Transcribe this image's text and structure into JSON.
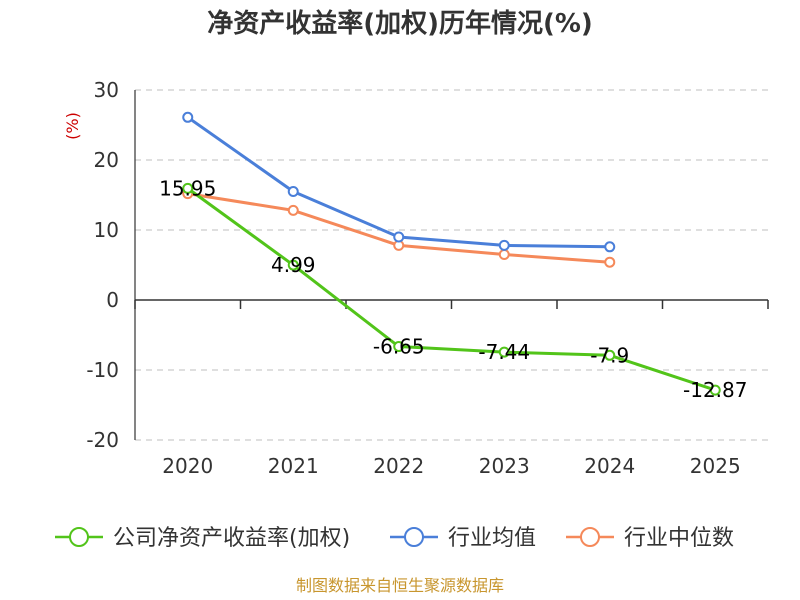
{
  "chart_data": {
    "type": "line",
    "title": "净资产收益率(加权)历年情况(%)",
    "ylabel": "(%)",
    "xlabel": "",
    "categories": [
      "2020",
      "2021",
      "2022",
      "2023",
      "2024",
      "2025"
    ],
    "ylim": [
      -20,
      30
    ],
    "yticks": [
      30,
      20,
      10,
      0,
      -10,
      -20
    ],
    "ytick_labels": [
      "30",
      "20",
      "10",
      "0",
      "-10",
      "-20"
    ],
    "grid": true,
    "legend_position": "bottom",
    "series": [
      {
        "name": "公司净资产收益率(加权)",
        "color": "#52c41a",
        "values": [
          15.95,
          4.99,
          -6.65,
          -7.44,
          -7.9,
          -12.87
        ],
        "labels": [
          "15.95",
          "4.99",
          "-6.65",
          "-7.44",
          "-7.9",
          "-12.87"
        ]
      },
      {
        "name": "行业均值",
        "color": "#4a7fd9",
        "values": [
          26.1,
          15.5,
          9.0,
          7.8,
          7.6,
          null
        ]
      },
      {
        "name": "行业中位数",
        "color": "#f5895a",
        "values": [
          15.2,
          12.8,
          7.8,
          6.5,
          5.4,
          null
        ]
      }
    ],
    "source": "制图数据来自恒生聚源数据库",
    "colors": {
      "ylabel": "#cc0000",
      "source": "#c8962e",
      "grid": "#cccccc",
      "axis": "#333333"
    }
  }
}
